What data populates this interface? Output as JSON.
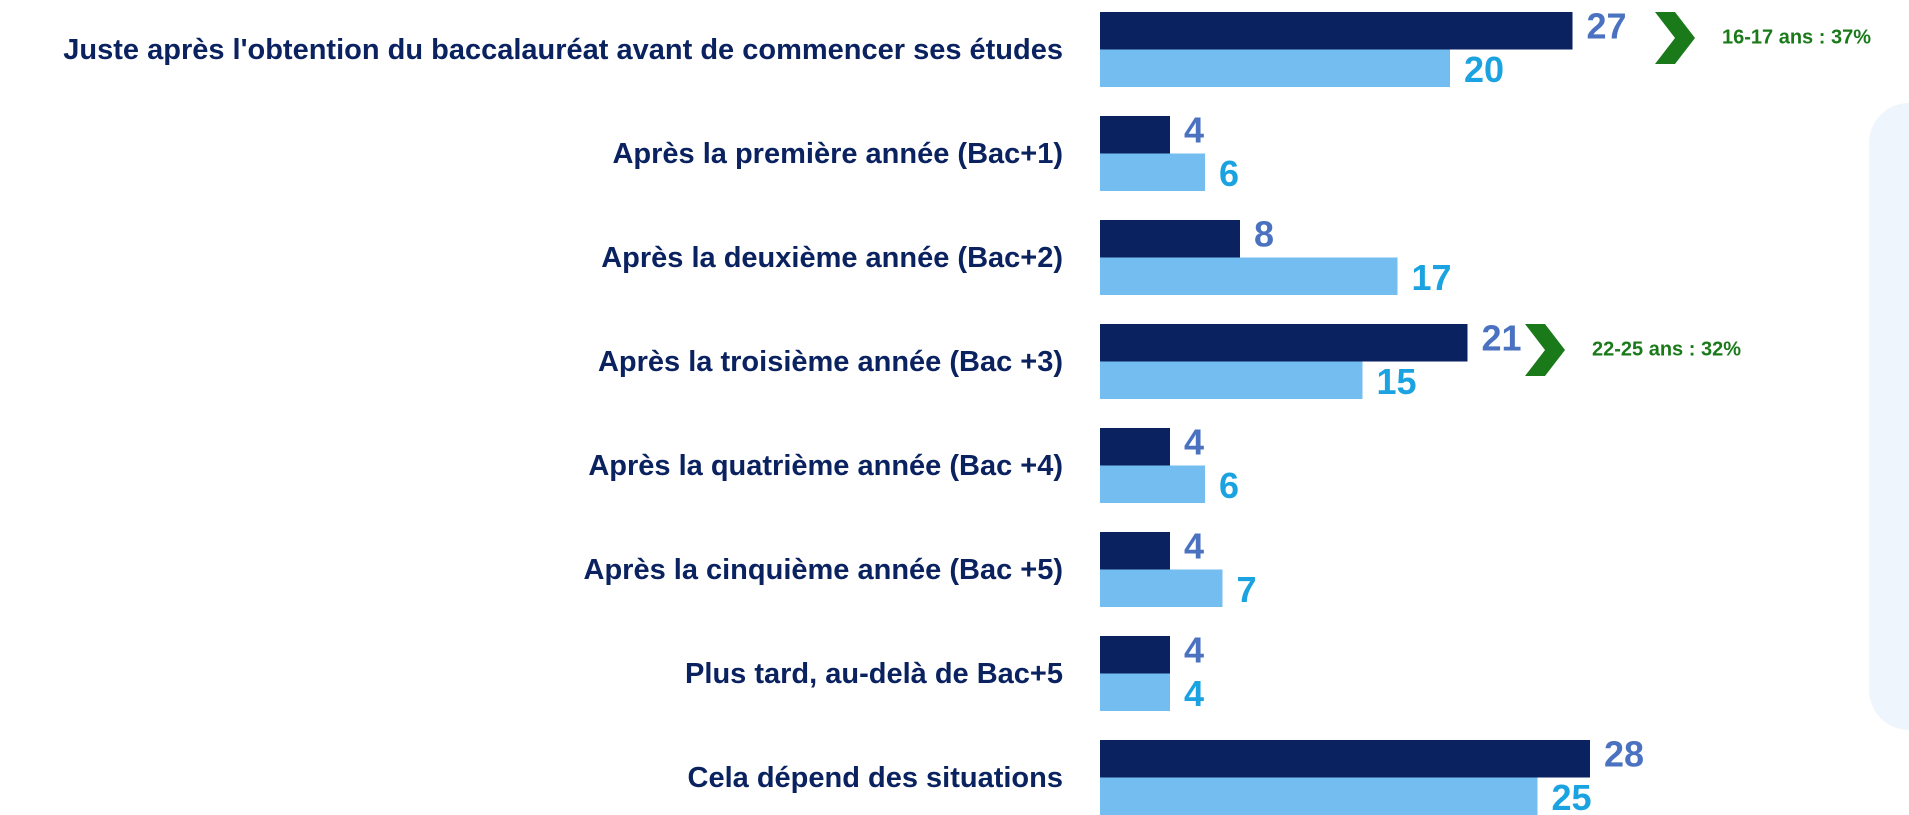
{
  "chart_data": {
    "type": "bar",
    "orientation": "horizontal",
    "categories": [
      "Juste après l'obtention du baccalauréat avant de commencer ses études",
      "Après la première année (Bac+1)",
      "Après la deuxième année (Bac+2)",
      "Après la troisième année (Bac +3)",
      "Après la quatrième année (Bac +4)",
      "Après la cinquième année (Bac +5)",
      "Plus tard, au-delà de Bac+5",
      "Cela dépend des situations"
    ],
    "series": [
      {
        "color": "#0b2260",
        "label_color": "#4a72c0",
        "values": [
          27,
          4,
          8,
          21,
          4,
          4,
          4,
          28
        ]
      },
      {
        "color": "#74bdf0",
        "label_color": "#1aa3e0",
        "values": [
          20,
          6,
          17,
          15,
          6,
          7,
          4,
          25
        ]
      }
    ],
    "annotations": [
      "16-17 ans : 37%",
      "22-25 ans : 32%"
    ],
    "annotation_color": "#1a7a1a"
  }
}
